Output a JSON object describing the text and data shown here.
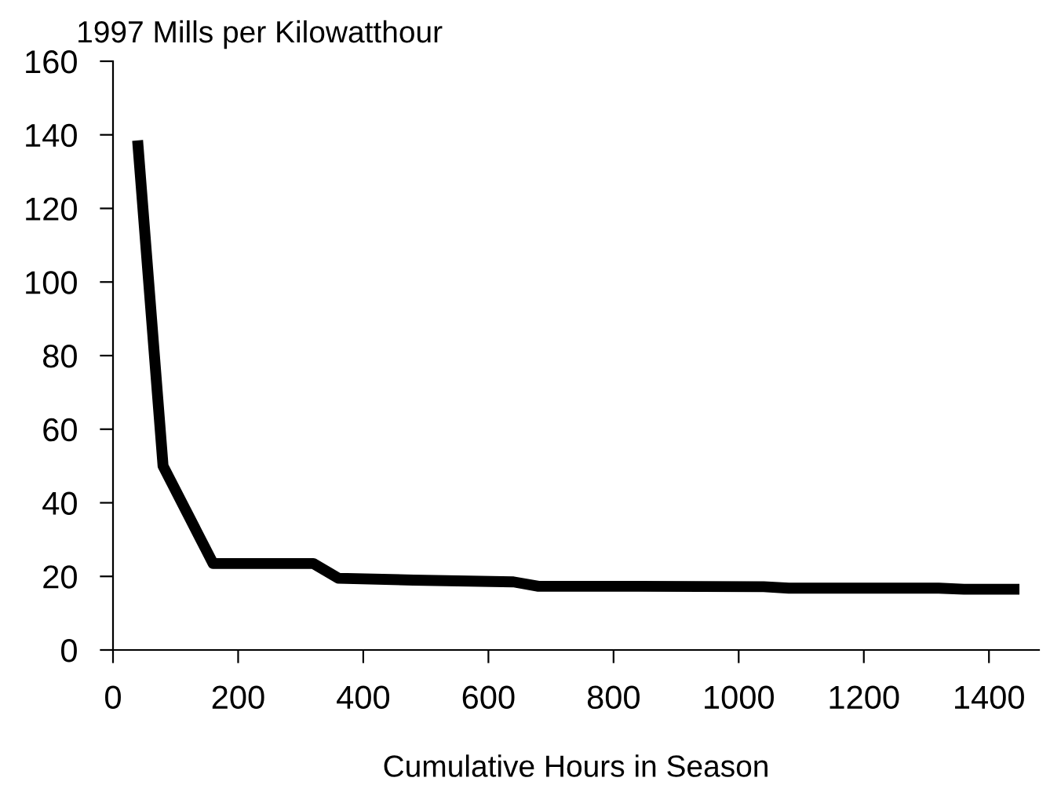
{
  "chart_data": {
    "type": "line",
    "ylabel": "1997 Mills per Kilowatthour",
    "xlabel": "Cumulative Hours in Season",
    "x": [
      40,
      80,
      160,
      240,
      320,
      360,
      480,
      640,
      680,
      840,
      1040,
      1080,
      1320,
      1360,
      1440
    ],
    "series": [
      {
        "color": "#000000",
        "values": [
          137,
          50,
          23.5,
          23.5,
          23.5,
          19.5,
          19,
          18.5,
          17.3,
          17.3,
          17.2,
          16.8,
          16.8,
          16.5,
          16.5
        ]
      }
    ],
    "xlim": [
      0,
      1480
    ],
    "xticks": [
      0,
      200,
      400,
      600,
      800,
      1000,
      1200,
      1400
    ],
    "ylim": [
      0,
      160
    ],
    "yticks": [
      0,
      20,
      40,
      60,
      80,
      100,
      120,
      140,
      160
    ],
    "grid": false,
    "legend": false,
    "marker": "none",
    "line_style": "solid"
  }
}
